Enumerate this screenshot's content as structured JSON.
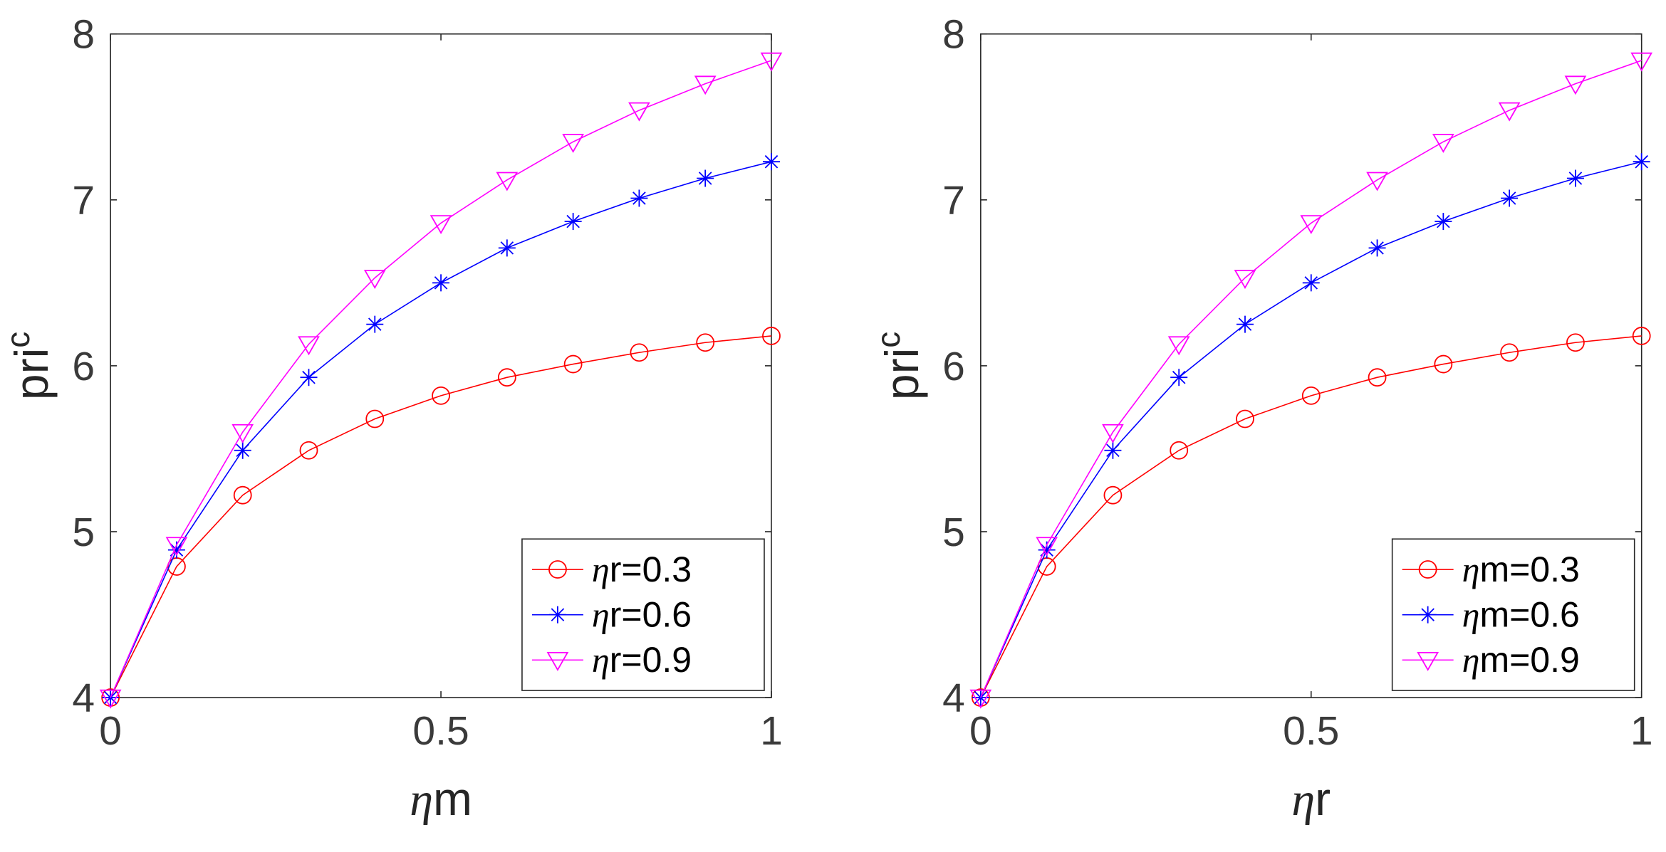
{
  "chart_data": [
    {
      "type": "line",
      "title": "",
      "xlabel_symbol": "η",
      "xlabel_text": "m",
      "ylabel_base": "pri",
      "ylabel_sup": "c",
      "xlim": [
        0,
        1
      ],
      "ylim": [
        4,
        8
      ],
      "xticks": [
        0,
        0.5,
        1
      ],
      "xtick_labels": [
        "0",
        "0.5",
        "1"
      ],
      "yticks": [
        4,
        5,
        6,
        7,
        8
      ],
      "ytick_labels": [
        "4",
        "5",
        "6",
        "7",
        "8"
      ],
      "grid": false,
      "legend_position": "bottom-right",
      "x": [
        0,
        0.1,
        0.2,
        0.3,
        0.4,
        0.5,
        0.6,
        0.7,
        0.8,
        0.9,
        1.0
      ],
      "series": [
        {
          "name": "ηr=0.3",
          "label_symbol": "η",
          "label_text": "r=0.3",
          "color": "#ff0000",
          "marker": "circle",
          "values": [
            4.0,
            4.79,
            5.22,
            5.49,
            5.68,
            5.82,
            5.93,
            6.01,
            6.08,
            6.14,
            6.18
          ]
        },
        {
          "name": "ηr=0.6",
          "label_symbol": "η",
          "label_text": "r=0.6",
          "color": "#0000ff",
          "marker": "asterisk",
          "values": [
            4.0,
            4.89,
            5.49,
            5.93,
            6.25,
            6.5,
            6.71,
            6.87,
            7.01,
            7.13,
            7.23
          ]
        },
        {
          "name": "ηr=0.9",
          "label_symbol": "η",
          "label_text": "r=0.9",
          "color": "#ff00ff",
          "marker": "triangle-down",
          "values": [
            4.0,
            4.92,
            5.6,
            6.13,
            6.53,
            6.86,
            7.12,
            7.35,
            7.54,
            7.7,
            7.84
          ]
        }
      ]
    },
    {
      "type": "line",
      "title": "",
      "xlabel_symbol": "η",
      "xlabel_text": "r",
      "ylabel_base": "pri",
      "ylabel_sup": "c",
      "xlim": [
        0,
        1
      ],
      "ylim": [
        4,
        8
      ],
      "xticks": [
        0,
        0.5,
        1
      ],
      "xtick_labels": [
        "0",
        "0.5",
        "1"
      ],
      "yticks": [
        4,
        5,
        6,
        7,
        8
      ],
      "ytick_labels": [
        "4",
        "5",
        "6",
        "7",
        "8"
      ],
      "grid": false,
      "legend_position": "bottom-right",
      "x": [
        0,
        0.1,
        0.2,
        0.3,
        0.4,
        0.5,
        0.6,
        0.7,
        0.8,
        0.9,
        1.0
      ],
      "series": [
        {
          "name": "ηm=0.3",
          "label_symbol": "η",
          "label_text": "m=0.3",
          "color": "#ff0000",
          "marker": "circle",
          "values": [
            4.0,
            4.79,
            5.22,
            5.49,
            5.68,
            5.82,
            5.93,
            6.01,
            6.08,
            6.14,
            6.18
          ]
        },
        {
          "name": "ηm=0.6",
          "label_symbol": "η",
          "label_text": "m=0.6",
          "color": "#0000ff",
          "marker": "asterisk",
          "values": [
            4.0,
            4.89,
            5.49,
            5.93,
            6.25,
            6.5,
            6.71,
            6.87,
            7.01,
            7.13,
            7.23
          ]
        },
        {
          "name": "ηm=0.9",
          "label_symbol": "η",
          "label_text": "m=0.9",
          "color": "#ff00ff",
          "marker": "triangle-down",
          "values": [
            4.0,
            4.92,
            5.6,
            6.13,
            6.53,
            6.86,
            7.12,
            7.35,
            7.54,
            7.7,
            7.84
          ]
        }
      ]
    }
  ]
}
